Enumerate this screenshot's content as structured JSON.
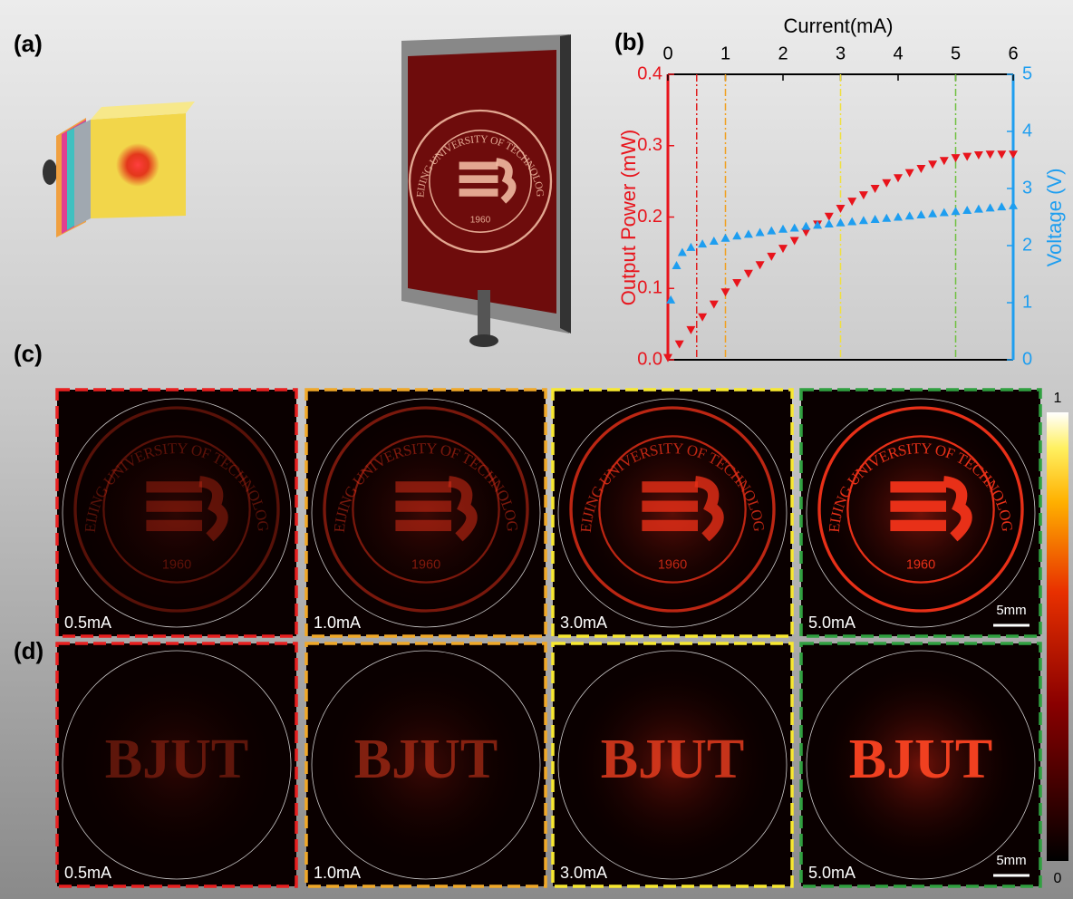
{
  "panel_labels": [
    "(a)",
    "(b)",
    "(c)",
    "(d)"
  ],
  "scene": {
    "logo_text": "BEIJING UNIVERSITY OF TECHNOLOGY",
    "logo_year": "1960"
  },
  "chart_data": {
    "type": "scatter",
    "xlabel": "Current(mA)",
    "ylabel": "Output Power (mW)",
    "y2label": "Voltage (V)",
    "xlim": [
      0,
      6
    ],
    "xticks": [
      0,
      1,
      2,
      3,
      4,
      5,
      6
    ],
    "ylim": [
      0,
      0.4
    ],
    "yticks": [
      {
        "value": 0,
        "label": "0.0"
      },
      0.1,
      0.2,
      0.3,
      0.4
    ],
    "y2lim": [
      0,
      5
    ],
    "y2ticks": [
      0,
      1,
      2,
      3,
      4,
      5
    ],
    "ycolor": "#e8141c",
    "y2color": "#1e9ef0",
    "series": [
      {
        "color": "#e8141c",
        "marker": "down",
        "x": [
          0,
          0.2,
          0.4,
          0.6,
          0.8,
          1.0,
          1.2,
          1.4,
          1.6,
          1.8,
          2.0,
          2.2,
          2.4,
          2.6,
          2.8,
          3.0,
          3.2,
          3.4,
          3.6,
          3.8,
          4.0,
          4.2,
          4.4,
          4.6,
          4.8,
          5.0,
          5.2,
          5.4,
          5.6,
          5.8,
          6.0
        ],
        "values": [
          0.003,
          0.022,
          0.042,
          0.06,
          0.078,
          0.095,
          0.108,
          0.121,
          0.133,
          0.145,
          0.156,
          0.167,
          0.179,
          0.19,
          0.201,
          0.212,
          0.222,
          0.231,
          0.24,
          0.248,
          0.255,
          0.262,
          0.268,
          0.274,
          0.279,
          0.283,
          0.285,
          0.287,
          0.288,
          0.288,
          0.288
        ]
      },
      {
        "color": "#1e9ef0",
        "marker": "up",
        "axis": "y2",
        "x": [
          0.05,
          0.15,
          0.25,
          0.4,
          0.6,
          0.8,
          1.0,
          1.2,
          1.4,
          1.6,
          1.8,
          2.0,
          2.2,
          2.4,
          2.6,
          2.8,
          3.0,
          3.2,
          3.4,
          3.6,
          3.8,
          4.0,
          4.2,
          4.4,
          4.6,
          4.8,
          5.0,
          5.2,
          5.4,
          5.6,
          5.8,
          6.0
        ],
        "values": [
          1.05,
          1.65,
          1.88,
          1.97,
          2.03,
          2.08,
          2.13,
          2.17,
          2.2,
          2.23,
          2.26,
          2.29,
          2.31,
          2.34,
          2.36,
          2.38,
          2.4,
          2.42,
          2.44,
          2.46,
          2.48,
          2.5,
          2.52,
          2.54,
          2.56,
          2.58,
          2.6,
          2.62,
          2.64,
          2.66,
          2.68,
          2.7
        ]
      }
    ],
    "vlines": [
      {
        "x": 0.5,
        "color": "#e02020"
      },
      {
        "x": 1.0,
        "color": "#f0a020"
      },
      {
        "x": 3.0,
        "color": "#f0e040"
      },
      {
        "x": 5.0,
        "color": "#70c040"
      }
    ]
  },
  "images": {
    "currents": [
      "0.5mA",
      "1.0mA",
      "3.0mA",
      "5.0mA"
    ],
    "frame_colors": [
      "#e82020",
      "#f0a828",
      "#f8e830",
      "#30a040"
    ],
    "row_d_text": "BJUT",
    "scale_bar": "5mm",
    "colorbar": {
      "max": "1",
      "min": "0"
    }
  }
}
